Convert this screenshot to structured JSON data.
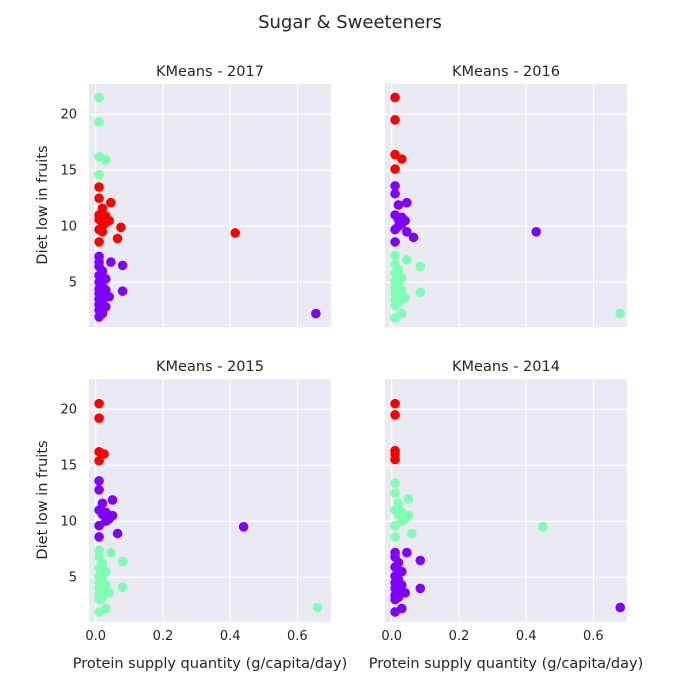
{
  "chart_data": {
    "type": "scatter",
    "title": "Sugar & Sweeteners",
    "xlabel": "Protein supply quantity (g/capita/day)",
    "ylabel": "Diet low in fruits",
    "xlim": [
      -0.02,
      0.7
    ],
    "ylim": [
      1.0,
      22.7
    ],
    "xticks": [
      "0.0",
      "0.2",
      "0.4",
      "0.6"
    ],
    "yticks": [
      "5",
      "10",
      "15",
      "20"
    ],
    "grid": true,
    "colors": {
      "red": "#ff0000",
      "teal": "#80ffb4",
      "purple": "#8000ff",
      "background": "#eaeaf2",
      "grid": "#ffffff"
    },
    "panels": [
      {
        "title": "KMeans - 2017",
        "clusters": [
          {
            "color": "teal",
            "points": [
              [
                0.01,
                21.5
              ],
              [
                0.01,
                19.3
              ],
              [
                0.01,
                16.2
              ],
              [
                0.03,
                15.9
              ],
              [
                0.01,
                14.6
              ]
            ]
          },
          {
            "color": "red",
            "points": [
              [
                0.01,
                13.5
              ],
              [
                0.01,
                12.5
              ],
              [
                0.045,
                12.1
              ],
              [
                0.02,
                11.6
              ],
              [
                0.01,
                11.0
              ],
              [
                0.03,
                10.9
              ],
              [
                0.02,
                10.7
              ],
              [
                0.01,
                10.6
              ],
              [
                0.04,
                10.5
              ],
              [
                0.03,
                10.3
              ],
              [
                0.02,
                10.0
              ],
              [
                0.075,
                9.9
              ],
              [
                0.01,
                9.7
              ],
              [
                0.02,
                9.5
              ],
              [
                0.065,
                8.9
              ],
              [
                0.01,
                8.6
              ],
              [
                0.415,
                9.4
              ]
            ]
          },
          {
            "color": "purple",
            "points": [
              [
                0.01,
                7.3
              ],
              [
                0.01,
                6.8
              ],
              [
                0.045,
                6.8
              ],
              [
                0.01,
                6.4
              ],
              [
                0.08,
                6.5
              ],
              [
                0.02,
                6.0
              ],
              [
                0.01,
                5.6
              ],
              [
                0.03,
                5.3
              ],
              [
                0.01,
                5.0
              ],
              [
                0.02,
                4.6
              ],
              [
                0.01,
                4.4
              ],
              [
                0.03,
                4.3
              ],
              [
                0.08,
                4.2
              ],
              [
                0.01,
                4.0
              ],
              [
                0.02,
                3.8
              ],
              [
                0.04,
                3.7
              ],
              [
                0.01,
                3.5
              ],
              [
                0.02,
                3.3
              ],
              [
                0.01,
                3.0
              ],
              [
                0.03,
                2.8
              ],
              [
                0.01,
                2.5
              ],
              [
                0.01,
                1.9
              ],
              [
                0.02,
                2.2
              ],
              [
                0.655,
                2.2
              ]
            ]
          }
        ]
      },
      {
        "title": "KMeans - 2016",
        "clusters": [
          {
            "color": "red",
            "points": [
              [
                0.01,
                21.5
              ],
              [
                0.01,
                19.5
              ],
              [
                0.01,
                16.4
              ],
              [
                0.03,
                16.0
              ],
              [
                0.01,
                15.1
              ]
            ]
          },
          {
            "color": "purple",
            "points": [
              [
                0.01,
                13.6
              ],
              [
                0.01,
                12.9
              ],
              [
                0.045,
                12.1
              ],
              [
                0.02,
                11.9
              ],
              [
                0.01,
                11.0
              ],
              [
                0.03,
                10.8
              ],
              [
                0.02,
                10.6
              ],
              [
                0.04,
                10.5
              ],
              [
                0.03,
                10.2
              ],
              [
                0.02,
                10.0
              ],
              [
                0.01,
                9.7
              ],
              [
                0.045,
                9.5
              ],
              [
                0.065,
                9.0
              ],
              [
                0.01,
                8.6
              ],
              [
                0.43,
                9.5
              ]
            ]
          },
          {
            "color": "teal",
            "points": [
              [
                0.01,
                7.4
              ],
              [
                0.045,
                7.0
              ],
              [
                0.01,
                6.6
              ],
              [
                0.085,
                6.4
              ],
              [
                0.02,
                6.1
              ],
              [
                0.01,
                5.8
              ],
              [
                0.03,
                5.4
              ],
              [
                0.01,
                5.1
              ],
              [
                0.02,
                4.8
              ],
              [
                0.01,
                4.5
              ],
              [
                0.03,
                4.3
              ],
              [
                0.085,
                4.1
              ],
              [
                0.01,
                4.0
              ],
              [
                0.02,
                3.8
              ],
              [
                0.04,
                3.6
              ],
              [
                0.01,
                3.4
              ],
              [
                0.02,
                3.2
              ],
              [
                0.01,
                2.9
              ],
              [
                0.03,
                2.2
              ],
              [
                0.01,
                1.8
              ],
              [
                0.68,
                2.2
              ]
            ]
          }
        ]
      },
      {
        "title": "KMeans - 2015",
        "clusters": [
          {
            "color": "red",
            "points": [
              [
                0.01,
                20.5
              ],
              [
                0.01,
                19.2
              ],
              [
                0.01,
                16.2
              ],
              [
                0.025,
                16.0
              ],
              [
                0.01,
                15.4
              ]
            ]
          },
          {
            "color": "purple",
            "points": [
              [
                0.01,
                13.6
              ],
              [
                0.01,
                12.8
              ],
              [
                0.05,
                11.9
              ],
              [
                0.02,
                11.6
              ],
              [
                0.01,
                11.0
              ],
              [
                0.03,
                10.8
              ],
              [
                0.02,
                10.6
              ],
              [
                0.05,
                10.5
              ],
              [
                0.04,
                10.2
              ],
              [
                0.03,
                10.0
              ],
              [
                0.01,
                9.6
              ],
              [
                0.065,
                8.9
              ],
              [
                0.01,
                8.6
              ],
              [
                0.44,
                9.5
              ]
            ]
          },
          {
            "color": "teal",
            "points": [
              [
                0.01,
                7.4
              ],
              [
                0.045,
                7.2
              ],
              [
                0.01,
                6.8
              ],
              [
                0.08,
                6.4
              ],
              [
                0.02,
                6.2
              ],
              [
                0.01,
                5.8
              ],
              [
                0.03,
                5.5
              ],
              [
                0.01,
                5.1
              ],
              [
                0.02,
                4.8
              ],
              [
                0.01,
                4.5
              ],
              [
                0.03,
                4.3
              ],
              [
                0.08,
                4.1
              ],
              [
                0.01,
                4.0
              ],
              [
                0.02,
                3.8
              ],
              [
                0.04,
                3.6
              ],
              [
                0.01,
                3.4
              ],
              [
                0.02,
                3.2
              ],
              [
                0.01,
                3.0
              ],
              [
                0.03,
                2.2
              ],
              [
                0.01,
                1.9
              ],
              [
                0.66,
                2.3
              ]
            ]
          }
        ]
      },
      {
        "title": "KMeans - 2014",
        "clusters": [
          {
            "color": "red",
            "points": [
              [
                0.01,
                20.5
              ],
              [
                0.01,
                19.5
              ],
              [
                0.01,
                16.3
              ],
              [
                0.01,
                16.0
              ],
              [
                0.01,
                15.5
              ]
            ]
          },
          {
            "color": "teal",
            "points": [
              [
                0.01,
                13.4
              ],
              [
                0.01,
                12.5
              ],
              [
                0.05,
                12.0
              ],
              [
                0.02,
                11.6
              ],
              [
                0.01,
                11.0
              ],
              [
                0.03,
                10.8
              ],
              [
                0.02,
                10.6
              ],
              [
                0.05,
                10.5
              ],
              [
                0.04,
                10.2
              ],
              [
                0.03,
                10.0
              ],
              [
                0.01,
                9.6
              ],
              [
                0.06,
                8.9
              ],
              [
                0.01,
                8.6
              ],
              [
                0.45,
                9.5
              ]
            ]
          },
          {
            "color": "purple",
            "points": [
              [
                0.01,
                7.2
              ],
              [
                0.045,
                7.2
              ],
              [
                0.01,
                6.8
              ],
              [
                0.085,
                6.5
              ],
              [
                0.02,
                6.3
              ],
              [
                0.01,
                5.9
              ],
              [
                0.03,
                5.5
              ],
              [
                0.01,
                5.1
              ],
              [
                0.02,
                4.8
              ],
              [
                0.01,
                4.5
              ],
              [
                0.03,
                4.3
              ],
              [
                0.085,
                4.0
              ],
              [
                0.01,
                4.0
              ],
              [
                0.02,
                3.8
              ],
              [
                0.04,
                3.6
              ],
              [
                0.01,
                3.4
              ],
              [
                0.02,
                3.2
              ],
              [
                0.01,
                3.0
              ],
              [
                0.03,
                2.2
              ],
              [
                0.01,
                1.9
              ],
              [
                0.68,
                2.3
              ]
            ]
          }
        ]
      }
    ]
  }
}
